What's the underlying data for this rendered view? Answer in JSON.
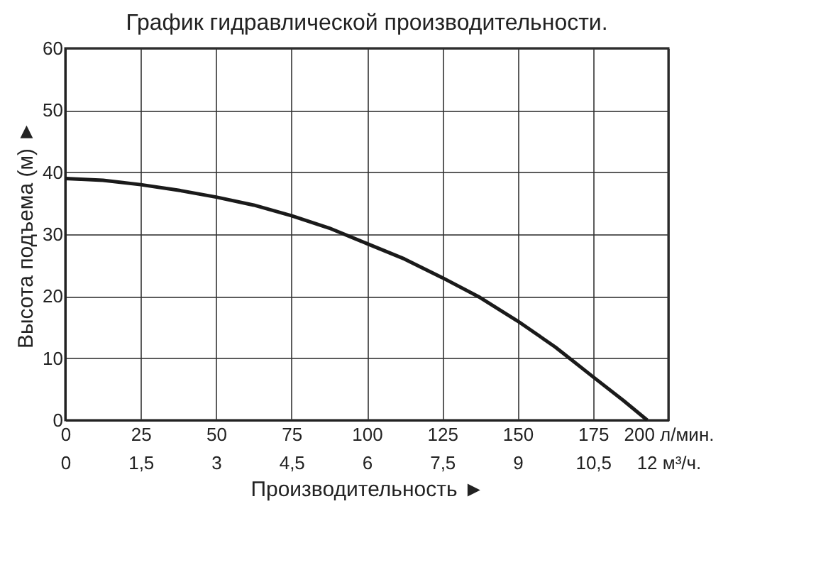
{
  "chart_data": {
    "type": "line",
    "title": "График гидравлической производительности.",
    "xlabel": "Производительность ►",
    "ylabel": "Высота подъема (м) ►",
    "series": [
      {
        "color": "#1a1a1a",
        "x": [
          0,
          12.5,
          25,
          37.5,
          50,
          62.5,
          75,
          87.5,
          100,
          112.5,
          125,
          137.5,
          150,
          162.5,
          175,
          185,
          193
        ],
        "values": [
          39,
          38.7,
          38,
          37.1,
          36,
          34.7,
          33,
          31,
          28.5,
          26,
          23,
          19.8,
          16,
          11.8,
          7,
          3.2,
          0
        ]
      }
    ],
    "xlim": [
      0,
      200
    ],
    "xticks": [
      0,
      25,
      50,
      75,
      100,
      125,
      150,
      175,
      {
        "value": 200,
        "label": "200 л/мин."
      }
    ],
    "x2lim": [
      0,
      12
    ],
    "x2ticks": [
      0,
      {
        "value": 1.5,
        "label": "1,5"
      },
      3,
      {
        "value": 4.5,
        "label": "4,5"
      },
      6,
      {
        "value": 7.5,
        "label": "7,5"
      },
      9,
      {
        "value": 10.5,
        "label": "10,5"
      },
      {
        "value": 12,
        "label": "12 м³/ч."
      }
    ],
    "ylim": [
      0,
      60
    ],
    "yticks": [
      0,
      10,
      20,
      30,
      40,
      50,
      60
    ],
    "grid": true,
    "marker": "none",
    "line_style": "solid"
  }
}
